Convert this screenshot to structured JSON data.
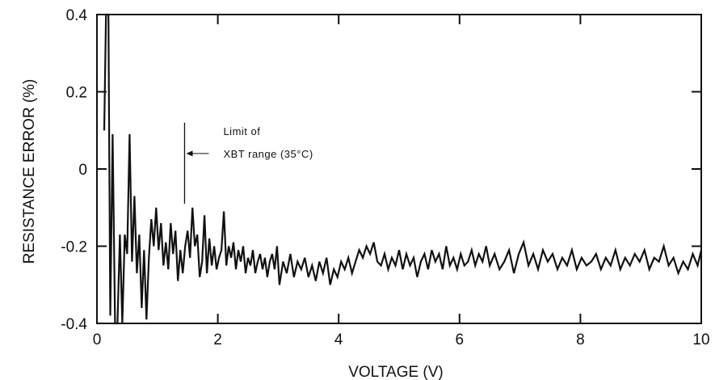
{
  "chart_data": {
    "type": "line",
    "title": "",
    "xlabel": "VOLTAGE (V)",
    "ylabel": "RESISTANCE ERROR (%)",
    "xlim": [
      0,
      10
    ],
    "ylim": [
      -0.4,
      0.4
    ],
    "x_ticks": [
      0,
      2,
      4,
      6,
      8,
      10
    ],
    "x_tick_labels": [
      "0",
      "2",
      "4",
      "6",
      "8",
      "10"
    ],
    "y_ticks": [
      -0.4,
      -0.2,
      0,
      0.2,
      0.4
    ],
    "y_tick_labels": [
      "-0.4",
      "-0.2",
      "0",
      "0.2",
      "0.4"
    ],
    "grid": false,
    "line_color": "#111111",
    "annotation": {
      "lines": [
        "Limit of",
        "XBT range (35°C)"
      ],
      "x": 1.45,
      "marker_y_range": [
        0.02,
        -0.09
      ]
    },
    "series": [
      {
        "x": [
          0.12,
          0.15,
          0.19,
          0.22,
          0.26,
          0.3,
          0.34,
          0.38,
          0.42,
          0.46,
          0.5,
          0.54,
          0.58,
          0.62,
          0.66,
          0.7,
          0.74,
          0.78,
          0.82,
          0.86,
          0.9,
          0.94,
          0.98,
          1.02,
          1.06,
          1.1,
          1.14,
          1.18,
          1.22,
          1.26,
          1.3,
          1.34,
          1.38,
          1.42,
          1.46,
          1.5,
          1.54,
          1.58,
          1.62,
          1.66,
          1.7,
          1.74,
          1.78,
          1.82,
          1.86,
          1.9,
          1.94,
          1.98,
          2.02,
          2.06,
          2.1,
          2.14,
          2.18,
          2.22,
          2.26,
          2.3,
          2.34,
          2.38,
          2.42,
          2.46,
          2.5,
          2.54,
          2.58,
          2.62,
          2.66,
          2.7,
          2.74,
          2.78,
          2.82,
          2.86,
          2.9,
          2.94,
          2.98,
          3.02,
          3.08,
          3.14,
          3.2,
          3.26,
          3.32,
          3.38,
          3.44,
          3.5,
          3.56,
          3.62,
          3.68,
          3.74,
          3.8,
          3.86,
          3.92,
          3.98,
          4.04,
          4.1,
          4.16,
          4.22,
          4.28,
          4.34,
          4.4,
          4.46,
          4.52,
          4.58,
          4.64,
          4.7,
          4.76,
          4.82,
          4.88,
          4.94,
          5.0,
          5.06,
          5.12,
          5.18,
          5.24,
          5.3,
          5.36,
          5.42,
          5.48,
          5.54,
          5.6,
          5.66,
          5.72,
          5.78,
          5.84,
          5.9,
          5.96,
          6.02,
          6.08,
          6.14,
          6.2,
          6.26,
          6.32,
          6.38,
          6.44,
          6.5,
          6.58,
          6.66,
          6.74,
          6.82,
          6.9,
          6.98,
          7.06,
          7.14,
          7.22,
          7.3,
          7.38,
          7.46,
          7.54,
          7.62,
          7.7,
          7.78,
          7.86,
          7.94,
          8.02,
          8.1,
          8.18,
          8.26,
          8.34,
          8.42,
          8.5,
          8.58,
          8.66,
          8.74,
          8.82,
          8.9,
          8.98,
          9.06,
          9.14,
          9.22,
          9.3,
          9.38,
          9.46,
          9.54,
          9.62,
          9.7,
          9.78,
          9.86,
          9.94,
          10.0
        ],
        "y": [
          0.1,
          0.4,
          0.4,
          -0.38,
          0.09,
          -0.4,
          -0.4,
          -0.17,
          -0.4,
          -0.17,
          -0.22,
          0.09,
          -0.24,
          -0.07,
          -0.27,
          -0.17,
          -0.36,
          -0.21,
          -0.39,
          -0.23,
          -0.13,
          -0.2,
          -0.1,
          -0.21,
          -0.14,
          -0.25,
          -0.19,
          -0.26,
          -0.14,
          -0.22,
          -0.16,
          -0.29,
          -0.21,
          -0.27,
          -0.2,
          -0.16,
          -0.23,
          -0.1,
          -0.2,
          -0.17,
          -0.28,
          -0.24,
          -0.12,
          -0.27,
          -0.18,
          -0.25,
          -0.2,
          -0.26,
          -0.23,
          -0.21,
          -0.11,
          -0.25,
          -0.2,
          -0.23,
          -0.19,
          -0.26,
          -0.21,
          -0.24,
          -0.2,
          -0.27,
          -0.23,
          -0.25,
          -0.21,
          -0.27,
          -0.24,
          -0.22,
          -0.26,
          -0.23,
          -0.28,
          -0.24,
          -0.22,
          -0.26,
          -0.2,
          -0.3,
          -0.24,
          -0.27,
          -0.22,
          -0.28,
          -0.24,
          -0.26,
          -0.23,
          -0.28,
          -0.25,
          -0.29,
          -0.24,
          -0.27,
          -0.23,
          -0.3,
          -0.26,
          -0.28,
          -0.24,
          -0.26,
          -0.23,
          -0.27,
          -0.24,
          -0.21,
          -0.23,
          -0.2,
          -0.22,
          -0.19,
          -0.24,
          -0.25,
          -0.22,
          -0.26,
          -0.23,
          -0.25,
          -0.21,
          -0.26,
          -0.22,
          -0.25,
          -0.23,
          -0.28,
          -0.24,
          -0.22,
          -0.26,
          -0.21,
          -0.24,
          -0.22,
          -0.26,
          -0.2,
          -0.25,
          -0.23,
          -0.26,
          -0.22,
          -0.25,
          -0.24,
          -0.21,
          -0.25,
          -0.22,
          -0.24,
          -0.2,
          -0.25,
          -0.22,
          -0.26,
          -0.24,
          -0.21,
          -0.27,
          -0.22,
          -0.19,
          -0.25,
          -0.22,
          -0.26,
          -0.21,
          -0.24,
          -0.22,
          -0.26,
          -0.23,
          -0.25,
          -0.21,
          -0.26,
          -0.23,
          -0.25,
          -0.24,
          -0.22,
          -0.26,
          -0.23,
          -0.25,
          -0.21,
          -0.26,
          -0.23,
          -0.25,
          -0.22,
          -0.24,
          -0.21,
          -0.26,
          -0.23,
          -0.24,
          -0.2,
          -0.25,
          -0.23,
          -0.27,
          -0.24,
          -0.26,
          -0.22,
          -0.25,
          -0.21
        ]
      }
    ]
  }
}
